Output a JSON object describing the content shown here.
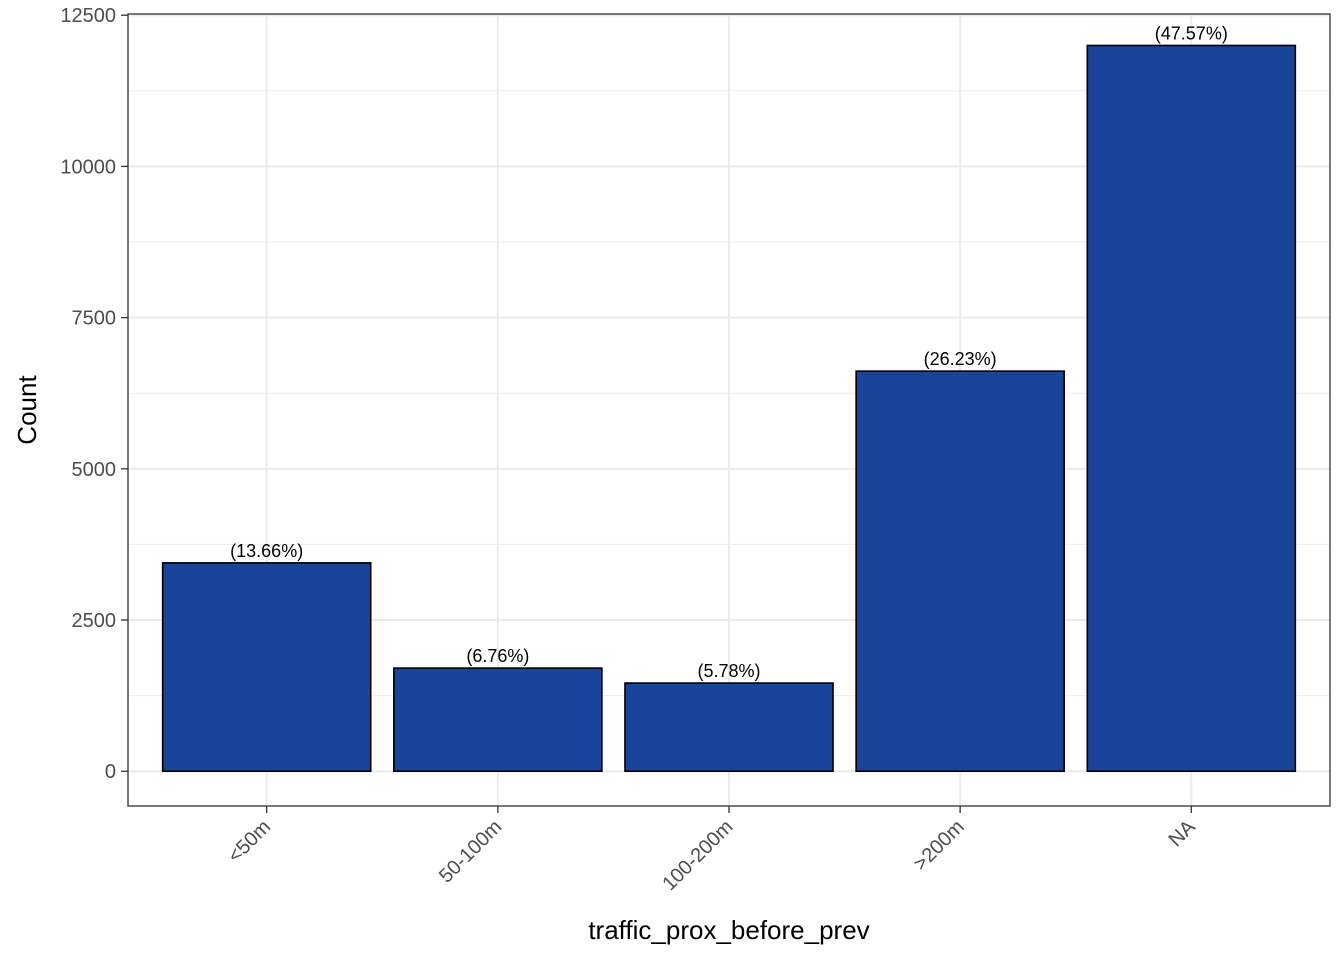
{
  "chart_data": {
    "type": "bar",
    "categories": [
      "<50m",
      "50-100m",
      "100-200m",
      ">200m",
      "NA"
    ],
    "values": [
      3445,
      1705,
      1458,
      6615,
      12000
    ],
    "data_labels": [
      "(13.66%)",
      "(6.76%)",
      "(5.78%)",
      "(26.23%)",
      "(47.57%)"
    ],
    "xlabel": "traffic_prox_before_prev",
    "ylabel": "Count",
    "ylim": [
      -575,
      12520
    ],
    "yticks": [
      0,
      2500,
      5000,
      7500,
      10000,
      12500
    ],
    "ytick_labels": [
      "0",
      "2500",
      "5000",
      "7500",
      "10000",
      "12500"
    ],
    "grid": true,
    "bar_color": "#1A4499",
    "bar_edge_color": "#000000",
    "grid_color": "#EBEBEB"
  }
}
